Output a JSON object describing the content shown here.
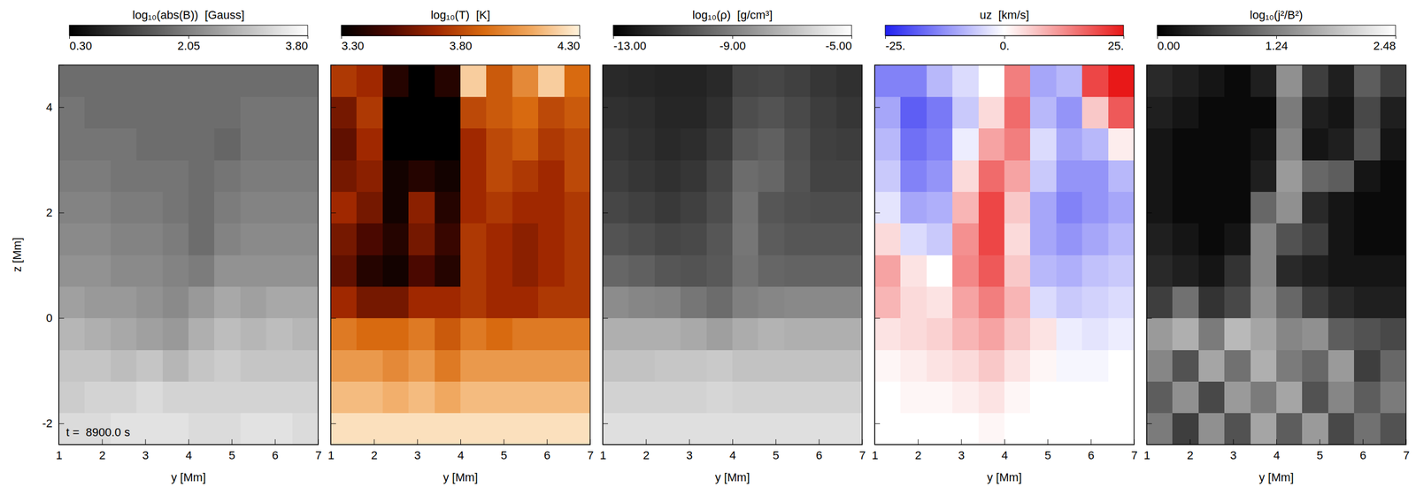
{
  "chart_data": [
    {
      "type": "heatmap",
      "title": "log₁₀(abs(B))  [Gauss]",
      "color": "gray",
      "x": [
        1.3,
        1.9,
        2.5,
        3.1,
        3.7,
        4.3,
        4.9,
        5.5,
        6.1,
        6.7
      ],
      "y": [
        -2.1,
        -1.5,
        -0.9,
        -0.3,
        0.3,
        0.9,
        1.5,
        2.1,
        2.7,
        3.3,
        3.9,
        4.5
      ],
      "values": [
        [
          3.3,
          3.3,
          3.4,
          3.4,
          3.4,
          3.3,
          3.3,
          3.4,
          3.4,
          3.3
        ],
        [
          3.1,
          3.2,
          3.2,
          3.3,
          3.2,
          3.2,
          3.2,
          3.2,
          3.2,
          3.2
        ],
        [
          3.0,
          3.0,
          2.9,
          3.0,
          2.8,
          3.0,
          3.1,
          3.0,
          3.0,
          3.0
        ],
        [
          2.8,
          2.7,
          2.6,
          2.5,
          2.4,
          2.7,
          2.9,
          2.8,
          2.9,
          2.8
        ],
        [
          2.5,
          2.4,
          2.4,
          2.3,
          2.2,
          2.4,
          2.6,
          2.5,
          2.6,
          2.6
        ],
        [
          2.3,
          2.3,
          2.2,
          2.2,
          2.1,
          2.0,
          2.3,
          2.3,
          2.3,
          2.3
        ],
        [
          2.2,
          2.2,
          2.1,
          2.1,
          2.0,
          1.8,
          2.1,
          2.2,
          2.2,
          2.2
        ],
        [
          2.1,
          2.1,
          2.0,
          2.0,
          1.9,
          1.8,
          2.0,
          2.1,
          2.1,
          2.1
        ],
        [
          2.0,
          2.0,
          1.9,
          1.9,
          1.9,
          1.8,
          1.9,
          2.0,
          2.0,
          2.0
        ],
        [
          1.9,
          1.9,
          1.9,
          1.8,
          1.8,
          1.8,
          1.7,
          1.9,
          1.9,
          1.9
        ],
        [
          1.9,
          1.8,
          1.8,
          1.8,
          1.8,
          1.8,
          1.8,
          1.9,
          1.9,
          1.9
        ],
        [
          1.8,
          1.8,
          1.8,
          1.8,
          1.8,
          1.8,
          1.8,
          1.8,
          1.8,
          1.8
        ]
      ],
      "colorbar": {
        "range": [
          0.3,
          3.8
        ],
        "ticks": [
          {
            "value": 0.3,
            "label": "0.30"
          },
          {
            "value": 2.05,
            "label": "2.05"
          },
          {
            "value": 3.8,
            "label": "3.80"
          }
        ]
      },
      "xlim": [
        1,
        7
      ],
      "ylim": [
        -2.4,
        4.8
      ],
      "xticks": [
        1,
        2,
        3,
        4,
        5,
        6,
        7
      ],
      "yticks": [
        -2,
        0,
        2,
        4
      ],
      "xlabel": "y [Mm]",
      "ylabel": "z [Mm]",
      "annotations": [
        "t =  8900.0 s"
      ]
    },
    {
      "type": "heatmap",
      "title": "log₁₀(T)  [K]",
      "color": "heat",
      "x": [
        1.3,
        1.9,
        2.5,
        3.1,
        3.7,
        4.3,
        4.9,
        5.5,
        6.1,
        6.7
      ],
      "y": [
        -2.1,
        -1.5,
        -0.9,
        -0.3,
        0.3,
        0.9,
        1.5,
        2.1,
        2.7,
        3.3,
        3.9,
        4.5
      ],
      "values": [
        [
          4.25,
          4.25,
          4.25,
          4.25,
          4.25,
          4.25,
          4.25,
          4.25,
          4.25,
          4.25
        ],
        [
          4.15,
          4.15,
          4.12,
          4.15,
          4.1,
          4.15,
          4.15,
          4.15,
          4.15,
          4.15
        ],
        [
          4.05,
          4.05,
          4.0,
          4.05,
          3.95,
          4.05,
          4.05,
          4.05,
          4.05,
          4.05
        ],
        [
          3.95,
          3.9,
          3.9,
          3.95,
          3.85,
          3.95,
          3.9,
          3.95,
          3.95,
          3.95
        ],
        [
          3.7,
          3.6,
          3.6,
          3.7,
          3.7,
          3.75,
          3.7,
          3.7,
          3.75,
          3.75
        ],
        [
          3.55,
          3.4,
          3.35,
          3.5,
          3.4,
          3.75,
          3.7,
          3.65,
          3.7,
          3.75
        ],
        [
          3.6,
          3.5,
          3.4,
          3.6,
          3.45,
          3.75,
          3.7,
          3.65,
          3.7,
          3.75
        ],
        [
          3.7,
          3.6,
          3.35,
          3.65,
          3.4,
          3.7,
          3.75,
          3.7,
          3.7,
          3.75
        ],
        [
          3.6,
          3.65,
          3.35,
          3.4,
          3.35,
          3.7,
          3.8,
          3.75,
          3.7,
          3.8
        ],
        [
          3.55,
          3.7,
          3.3,
          3.3,
          3.3,
          3.7,
          3.8,
          3.85,
          3.75,
          3.8
        ],
        [
          3.6,
          3.75,
          3.3,
          3.3,
          3.3,
          3.8,
          3.85,
          3.9,
          3.8,
          3.85
        ],
        [
          3.75,
          3.7,
          3.4,
          3.3,
          3.4,
          4.2,
          3.85,
          4.0,
          4.2,
          3.9
        ]
      ],
      "colorbar": {
        "range": [
          3.3,
          4.3
        ],
        "ticks": [
          {
            "value": 3.3,
            "label": "3.30"
          },
          {
            "value": 3.8,
            "label": "3.80"
          },
          {
            "value": 4.3,
            "label": "4.30"
          }
        ]
      },
      "xlim": [
        1,
        7
      ],
      "ylim": [
        -2.4,
        4.8
      ],
      "xticks": [
        1,
        2,
        3,
        4,
        5,
        6,
        7
      ],
      "yticks": [
        -2,
        0,
        2,
        4
      ],
      "xlabel": "y [Mm]",
      "tick_labels": "x"
    },
    {
      "type": "heatmap",
      "title": "log₁₀(ρ)  [g/cm³]",
      "color": "gray",
      "x": [
        1.3,
        1.9,
        2.5,
        3.1,
        3.7,
        4.3,
        4.9,
        5.5,
        6.1,
        6.7
      ],
      "y": [
        -2.1,
        -1.5,
        -0.9,
        -0.3,
        0.3,
        0.9,
        1.5,
        2.1,
        2.7,
        3.3,
        3.9,
        4.5
      ],
      "values": [
        [
          -6.0,
          -6.0,
          -6.0,
          -6.0,
          -6.0,
          -6.0,
          -6.0,
          -6.0,
          -6.0,
          -6.0
        ],
        [
          -6.4,
          -6.4,
          -6.4,
          -6.4,
          -6.3,
          -6.4,
          -6.4,
          -6.4,
          -6.4,
          -6.4
        ],
        [
          -6.9,
          -6.9,
          -6.8,
          -6.8,
          -6.7,
          -6.9,
          -6.9,
          -6.9,
          -6.9,
          -6.9
        ],
        [
          -7.5,
          -7.5,
          -7.5,
          -7.7,
          -8.0,
          -7.6,
          -7.4,
          -7.5,
          -7.5,
          -7.5
        ],
        [
          -8.6,
          -8.8,
          -8.9,
          -9.3,
          -9.6,
          -9.0,
          -8.8,
          -8.7,
          -8.7,
          -8.7
        ],
        [
          -9.8,
          -10.0,
          -10.3,
          -10.4,
          -10.2,
          -9.4,
          -9.8,
          -9.9,
          -9.9,
          -9.9
        ],
        [
          -10.4,
          -10.6,
          -10.8,
          -10.7,
          -10.3,
          -9.3,
          -10.1,
          -10.3,
          -10.3,
          -10.3
        ],
        [
          -10.8,
          -11.0,
          -11.2,
          -11.0,
          -10.6,
          -9.4,
          -10.3,
          -10.5,
          -10.6,
          -10.6
        ],
        [
          -11.1,
          -11.3,
          -11.5,
          -11.3,
          -10.8,
          -9.6,
          -9.8,
          -10.4,
          -10.9,
          -10.9
        ],
        [
          -11.3,
          -11.5,
          -11.7,
          -11.6,
          -11.2,
          -10.2,
          -10.0,
          -10.5,
          -11.0,
          -11.1
        ],
        [
          -11.5,
          -11.6,
          -11.8,
          -11.8,
          -11.5,
          -10.6,
          -10.4,
          -10.7,
          -11.1,
          -11.3
        ],
        [
          -11.7,
          -11.8,
          -11.9,
          -11.9,
          -11.7,
          -10.9,
          -10.8,
          -11.0,
          -11.3,
          -11.5
        ]
      ],
      "colorbar": {
        "range": [
          -13,
          -5
        ],
        "ticks": [
          {
            "value": -13,
            "label": "-13.00"
          },
          {
            "value": -9,
            "label": "-9.00"
          },
          {
            "value": -5,
            "label": "-5.00"
          }
        ]
      },
      "xlim": [
        1,
        7
      ],
      "ylim": [
        -2.4,
        4.8
      ],
      "xticks": [
        1,
        2,
        3,
        4,
        5,
        6,
        7
      ],
      "yticks": [
        -2,
        0,
        2,
        4
      ],
      "xlabel": "y [Mm]",
      "tick_labels": "x"
    },
    {
      "type": "heatmap",
      "title": "uz  [km/s]",
      "color": "bwr",
      "x": [
        1.3,
        1.9,
        2.5,
        3.1,
        3.7,
        4.3,
        4.9,
        5.5,
        6.1,
        6.7
      ],
      "y": [
        -2.1,
        -1.5,
        -0.9,
        -0.3,
        0.3,
        0.9,
        1.5,
        2.1,
        2.7,
        3.3,
        3.9,
        4.5
      ],
      "values": [
        [
          0,
          0,
          0,
          0,
          1,
          0,
          0,
          0,
          0,
          0
        ],
        [
          0,
          1,
          1,
          2,
          3,
          1,
          0,
          0,
          0,
          0
        ],
        [
          1,
          2,
          3,
          4,
          6,
          3,
          1,
          -1,
          -1,
          0
        ],
        [
          3,
          4,
          5,
          8,
          10,
          6,
          3,
          -2,
          -3,
          -2
        ],
        [
          8,
          4,
          3,
          10,
          14,
          8,
          -4,
          -6,
          -5,
          -4
        ],
        [
          10,
          3,
          0,
          13,
          18,
          6,
          -8,
          -9,
          -7,
          -6
        ],
        [
          4,
          -4,
          -6,
          12,
          20,
          4,
          -10,
          -12,
          -10,
          -8
        ],
        [
          -3,
          -10,
          -9,
          8,
          20,
          6,
          -10,
          -14,
          -12,
          -10
        ],
        [
          -6,
          -14,
          -12,
          4,
          16,
          10,
          -6,
          -12,
          -12,
          -8
        ],
        [
          -8,
          -16,
          -14,
          -2,
          10,
          14,
          -4,
          -10,
          -8,
          2
        ],
        [
          -10,
          -18,
          -15,
          -6,
          4,
          16,
          -8,
          -12,
          6,
          18
        ],
        [
          -14,
          -14,
          -8,
          -4,
          0,
          14,
          -10,
          -8,
          20,
          25
        ]
      ],
      "colorbar": {
        "range": [
          -25,
          25
        ],
        "ticks": [
          {
            "value": -25,
            "label": "-25."
          },
          {
            "value": 0,
            "label": "0."
          },
          {
            "value": 25,
            "label": "25."
          }
        ]
      },
      "xlim": [
        1,
        7
      ],
      "ylim": [
        -2.4,
        4.8
      ],
      "xticks": [
        1,
        2,
        3,
        4,
        5,
        6,
        7
      ],
      "yticks": [
        -2,
        0,
        2,
        4
      ],
      "xlabel": "y [Mm]",
      "tick_labels": "x"
    },
    {
      "type": "heatmap",
      "title": "log₁₀(j²/B²)",
      "color": "gray",
      "x": [
        1.3,
        1.9,
        2.5,
        3.1,
        3.7,
        4.3,
        4.9,
        5.5,
        6.1,
        6.7
      ],
      "y": [
        -2.1,
        -1.5,
        -0.9,
        -0.3,
        0.3,
        0.9,
        1.5,
        2.1,
        2.7,
        3.3,
        3.9,
        4.5
      ],
      "values": [
        [
          1.2,
          0.6,
          1.4,
          0.8,
          1.6,
          0.9,
          1.5,
          0.7,
          1.1,
          0.8
        ],
        [
          0.9,
          1.4,
          0.7,
          1.5,
          1.2,
          1.6,
          0.8,
          1.3,
          0.9,
          1.2
        ],
        [
          1.3,
          0.8,
          1.6,
          1.1,
          1.7,
          1.2,
          1.0,
          1.5,
          0.6,
          1.0
        ],
        [
          1.5,
          1.7,
          1.2,
          1.8,
          1.6,
          1.3,
          1.4,
          0.9,
          0.8,
          0.7
        ],
        [
          0.6,
          1.1,
          0.5,
          0.7,
          1.4,
          1.0,
          0.6,
          0.4,
          0.3,
          0.3
        ],
        [
          0.4,
          0.3,
          0.2,
          0.5,
          1.3,
          0.4,
          0.3,
          0.2,
          0.2,
          0.2
        ],
        [
          0.3,
          0.2,
          0.1,
          0.2,
          1.3,
          0.8,
          0.6,
          0.2,
          0.1,
          0.1
        ],
        [
          0.2,
          0.1,
          0.1,
          0.1,
          1.0,
          1.4,
          0.4,
          0.2,
          0.1,
          0.1
        ],
        [
          0.2,
          0.1,
          0.1,
          0.1,
          0.3,
          1.5,
          1.0,
          0.9,
          0.2,
          0.1
        ],
        [
          0.2,
          0.1,
          0.1,
          0.1,
          0.2,
          1.3,
          0.2,
          0.3,
          0.8,
          0.2
        ],
        [
          0.3,
          0.2,
          0.1,
          0.1,
          0.1,
          1.2,
          0.3,
          0.2,
          0.7,
          0.3
        ],
        [
          0.4,
          0.3,
          0.2,
          0.1,
          0.3,
          1.4,
          0.6,
          0.3,
          0.9,
          0.6
        ]
      ],
      "colorbar": {
        "range": [
          0,
          2.48
        ],
        "ticks": [
          {
            "value": 0,
            "label": "0.00"
          },
          {
            "value": 1.24,
            "label": "1.24"
          },
          {
            "value": 2.48,
            "label": "2.48"
          }
        ]
      },
      "xlim": [
        1,
        7
      ],
      "ylim": [
        -2.4,
        4.8
      ],
      "xticks": [
        1,
        2,
        3,
        4,
        5,
        6,
        7
      ],
      "yticks": [
        -2,
        0,
        2,
        4
      ],
      "xlabel": "y [Mm]",
      "tick_labels": "x"
    }
  ]
}
